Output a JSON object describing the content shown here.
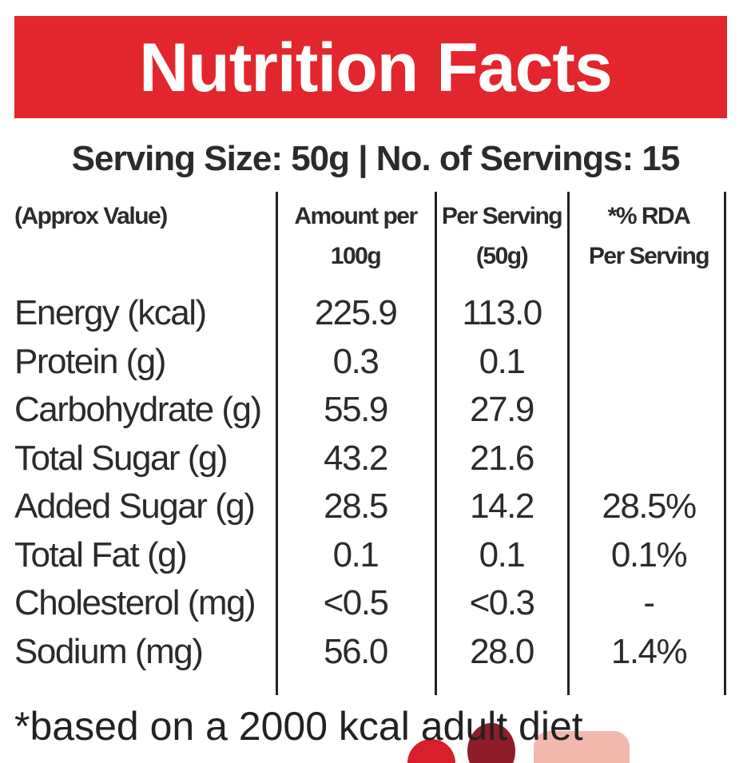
{
  "header": {
    "title": "Nutrition Facts",
    "serving": "Serving Size: 50g | No. of Servings: 15"
  },
  "table": {
    "columns": [
      [
        "(Approx Value)"
      ],
      [
        "Amount per",
        "100g"
      ],
      [
        "Per Serving",
        "(50g)"
      ],
      [
        "*% RDA",
        "Per Serving"
      ]
    ],
    "rows": [
      [
        "Energy (kcal)",
        "225.9",
        "113.0"
      ],
      [
        "Protein (g)",
        "0.3",
        "0.1"
      ],
      [
        "Carbohydrate (g)",
        "55.9",
        "27.9"
      ],
      [
        "Total Sugar (g)",
        "43.2",
        "21.6"
      ],
      [
        "Added Sugar (g)",
        "28.5",
        "14.2",
        "28.5%"
      ],
      [
        "Total Fat (g)",
        "0.1",
        "0.1",
        "0.1%"
      ],
      [
        "Cholesterol (mg)",
        "<0.5",
        "<0.3",
        "-"
      ],
      [
        "Sodium (mg)",
        "56.0",
        "28.0",
        "1.4%"
      ]
    ]
  },
  "footnote": "*based on a 2000 kcal adult diet"
}
